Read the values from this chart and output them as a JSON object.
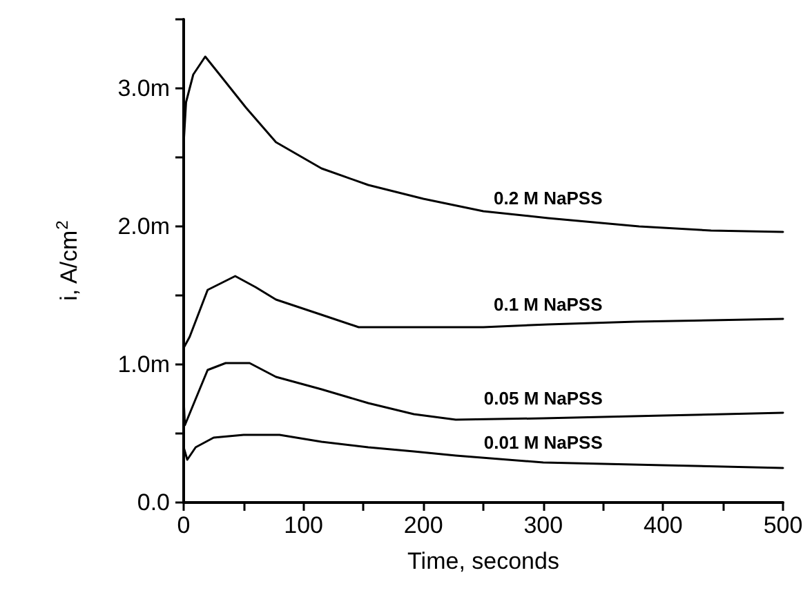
{
  "chart_data": {
    "type": "line",
    "xlabel": "Time, seconds",
    "ylabel": "i, A/cm$^{2}$",
    "xlim": [
      0,
      500
    ],
    "xticks": [
      0,
      {
        "value": 50,
        "label": null
      },
      100,
      {
        "value": 150,
        "label": null
      },
      200,
      {
        "value": 250,
        "label": null
      },
      300,
      {
        "value": 350,
        "label": null
      },
      400,
      {
        "value": 450,
        "label": null
      },
      500
    ],
    "ylim": [
      0,
      3.5
    ],
    "yticks": [
      {
        "value": 0,
        "label": "0.0"
      },
      {
        "value": 0.5,
        "label": null
      },
      {
        "value": 1,
        "label": "1.0m"
      },
      {
        "value": 1.5,
        "label": null
      },
      {
        "value": 2,
        "label": "2.0m"
      },
      {
        "value": 2.5,
        "label": null
      },
      {
        "value": 3,
        "label": "3.0m"
      },
      {
        "value": 3.5,
        "label": null
      }
    ],
    "grid": false,
    "legend": false,
    "marker": "none",
    "line_style": "solid",
    "series": [
      {
        "name": "0.2 M NaPSS",
        "color": "#000000",
        "x": [
          0,
          2,
          8,
          18,
          30,
          52,
          77,
          115,
          154,
          200,
          250,
          304,
          380,
          440,
          500
        ],
        "values": [
          2.6,
          2.9,
          3.1,
          3.23,
          3.1,
          2.86,
          2.61,
          2.42,
          2.3,
          2.2,
          2.11,
          2.06,
          2.0,
          1.97,
          1.96
        ]
      },
      {
        "name": "0.1 M NaPSS",
        "color": "#000000",
        "x": [
          0,
          5,
          20,
          43,
          60,
          77,
          115,
          146,
          200,
          250,
          304,
          377,
          440,
          500
        ],
        "values": [
          1.12,
          1.2,
          1.54,
          1.64,
          1.56,
          1.47,
          1.36,
          1.27,
          1.27,
          1.27,
          1.29,
          1.31,
          1.32,
          1.33
        ]
      },
      {
        "name": "0.05 M NaPSS",
        "color": "#000000",
        "x": [
          0,
          1,
          10,
          20,
          35,
          55,
          77,
          115,
          154,
          192,
          227,
          300,
          400,
          500
        ],
        "values": [
          0.75,
          0.56,
          0.75,
          0.96,
          1.01,
          1.01,
          0.91,
          0.82,
          0.72,
          0.64,
          0.6,
          0.61,
          0.63,
          0.65
        ]
      },
      {
        "name": "0.01 M NaPSS",
        "color": "#000000",
        "x": [
          0,
          3,
          10,
          25,
          50,
          80,
          115,
          154,
          192,
          227,
          300,
          400,
          500
        ],
        "values": [
          0.4,
          0.31,
          0.4,
          0.47,
          0.49,
          0.49,
          0.44,
          0.4,
          0.37,
          0.34,
          0.29,
          0.27,
          0.25
        ]
      }
    ]
  }
}
